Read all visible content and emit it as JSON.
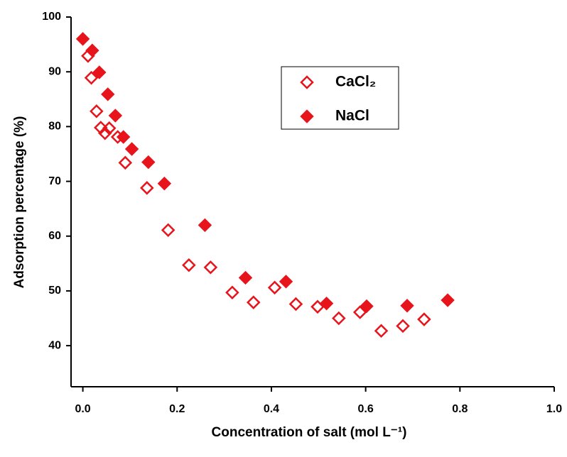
{
  "chart_data": {
    "type": "scatter",
    "x_label": "Concentration of salt (mol L⁻¹)",
    "y_label": "Adsorption percentage (%)",
    "xlim": [
      -0.025,
      1.0
    ],
    "xticks": [
      {
        "value": 0,
        "label": "0.0"
      },
      0.2,
      0.4,
      0.6,
      0.8,
      {
        "value": 1,
        "label": "1.0"
      }
    ],
    "ylim": [
      32.5,
      100
    ],
    "yticks": [
      40,
      50,
      60,
      70,
      80,
      90,
      100
    ],
    "grid": false,
    "series": [
      {
        "name": "CaCl₂",
        "color": "#e8141b",
        "marker": "diamond-open",
        "x": [
          0.011,
          0.018,
          0.029,
          0.038,
          0.047,
          0.056,
          0.074,
          0.09,
          0.136,
          0.181,
          0.225,
          0.271,
          0.317,
          0.362,
          0.407,
          0.452,
          0.498,
          0.543,
          0.588,
          0.633,
          0.679,
          0.724
        ],
        "values": [
          92.9,
          88.9,
          82.8,
          79.8,
          78.8,
          79.7,
          78.1,
          73.4,
          68.8,
          61.1,
          54.7,
          54.3,
          49.7,
          47.9,
          50.6,
          47.6,
          47.1,
          45.0,
          46.1,
          42.7,
          43.6,
          44.8
        ]
      },
      {
        "name": "NaCl",
        "color": "#e8141b",
        "marker": "diamond",
        "x": [
          0.0,
          0.02,
          0.035,
          0.053,
          0.069,
          0.086,
          0.104,
          0.139,
          0.173,
          0.259,
          0.345,
          0.431,
          0.517,
          0.602,
          0.688,
          0.774
        ],
        "values": [
          96.0,
          93.9,
          89.9,
          85.9,
          82.0,
          78.1,
          75.9,
          73.5,
          69.6,
          62.0,
          52.4,
          51.7,
          47.7,
          47.2,
          47.3,
          48.3
        ]
      }
    ]
  }
}
